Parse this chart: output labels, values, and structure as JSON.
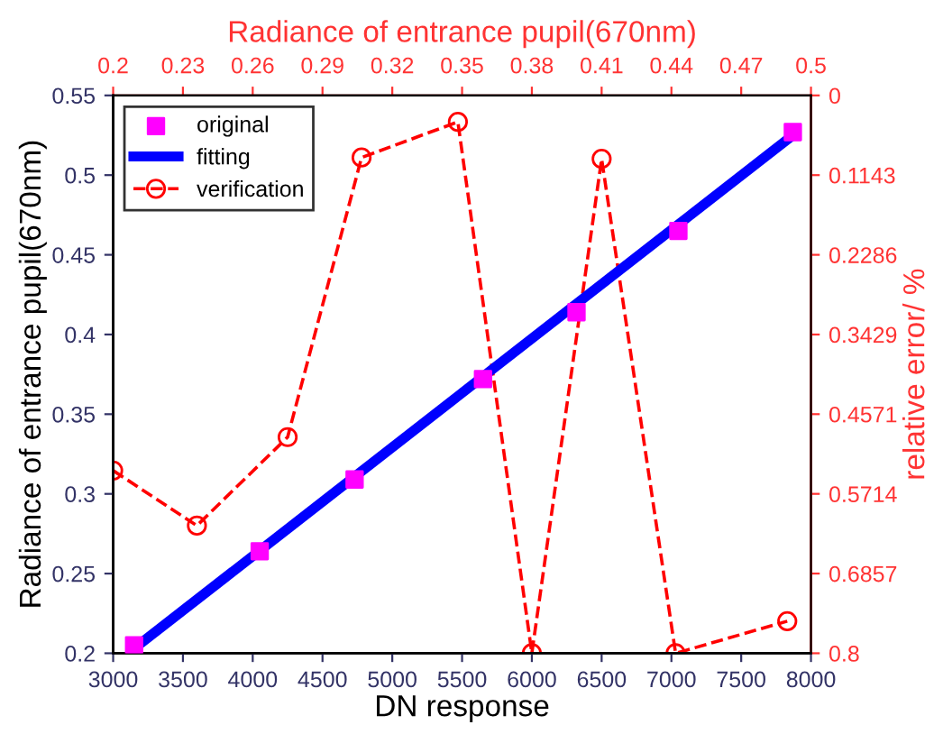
{
  "chart_data": {
    "type": "line",
    "xlabel": "DN response",
    "ylabel": "Radiance of entrance pupil(670nm)",
    "y2label": "relative error/ %",
    "x2label": "Radiance of entrance pupil(670nm)",
    "xlim": [
      3000,
      8000
    ],
    "xticks": [
      3000,
      3500,
      4000,
      4500,
      5000,
      5500,
      6000,
      6500,
      7000,
      7500,
      8000
    ],
    "ylim": [
      0.2,
      0.55
    ],
    "yticks": [
      0.2,
      0.25,
      0.3,
      0.35,
      0.4,
      0.45,
      0.5,
      0.55
    ],
    "x2lim": [
      0.2,
      0.5
    ],
    "x2ticks": [
      0.2,
      0.23,
      0.26,
      0.29,
      0.32,
      0.35,
      0.38,
      0.41,
      0.44,
      0.47,
      0.5
    ],
    "y2lim": [
      0.8,
      0
    ],
    "y2ticks": [
      0,
      0.1143,
      0.2286,
      0.3429,
      0.4571,
      0.5714,
      0.6857,
      0.8
    ],
    "legend": "top left",
    "grid": false,
    "series": [
      {
        "name": "original",
        "type": "scatter",
        "marker": "square",
        "color": "#ff00ff",
        "x": [
          3150,
          4050,
          4730,
          5650,
          6320,
          7050,
          7870
        ],
        "values": [
          0.205,
          0.264,
          0.309,
          0.372,
          0.414,
          0.465,
          0.527
        ]
      },
      {
        "name": "fitting",
        "marker": "none",
        "line_style": "solid",
        "color": "#0000ff",
        "x": [
          3150,
          7870
        ],
        "values": [
          0.203,
          0.525
        ]
      },
      {
        "name": "verification",
        "type": "line",
        "axis": "y2",
        "marker": "circle",
        "line_style": "dashed",
        "color": "#ff0000",
        "x": [
          3000,
          3600,
          4250,
          4780,
          5470,
          6000,
          6500,
          7030,
          7830
        ],
        "values": [
          0.538,
          0.617,
          0.49,
          0.089,
          0.038,
          0.8,
          0.091,
          0.8,
          0.754
        ]
      }
    ]
  }
}
